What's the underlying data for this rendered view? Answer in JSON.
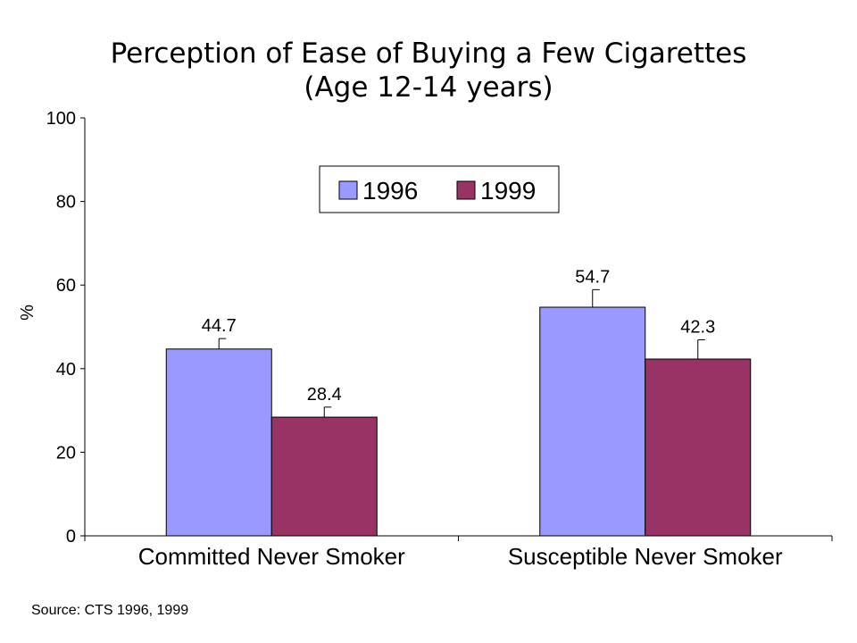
{
  "chart_data": {
    "type": "bar",
    "title": "Perception of Ease of Buying a Few Cigarettes",
    "subtitle": "(Age 12-14 years)",
    "ylabel": "%",
    "xlabel": "",
    "ylim": [
      0,
      100
    ],
    "yticks": [
      0,
      20,
      40,
      60,
      80,
      100
    ],
    "categories": [
      "Committed Never Smoker",
      "Susceptible Never Smoker"
    ],
    "series": [
      {
        "name": "1996",
        "color": "#9999ff",
        "values": [
          44.7,
          54.7
        ],
        "error_upper": [
          47.2,
          58.9
        ],
        "labels": [
          "44.7",
          "54.7"
        ]
      },
      {
        "name": "1999",
        "color": "#993366",
        "values": [
          28.4,
          42.3
        ],
        "error_upper": [
          30.8,
          46.9
        ],
        "labels": [
          "28.4",
          "42.3"
        ]
      }
    ],
    "legend": {
      "position": "top-center",
      "boxed": true
    },
    "grid": false
  },
  "source": "Source:  CTS 1996, 1999"
}
